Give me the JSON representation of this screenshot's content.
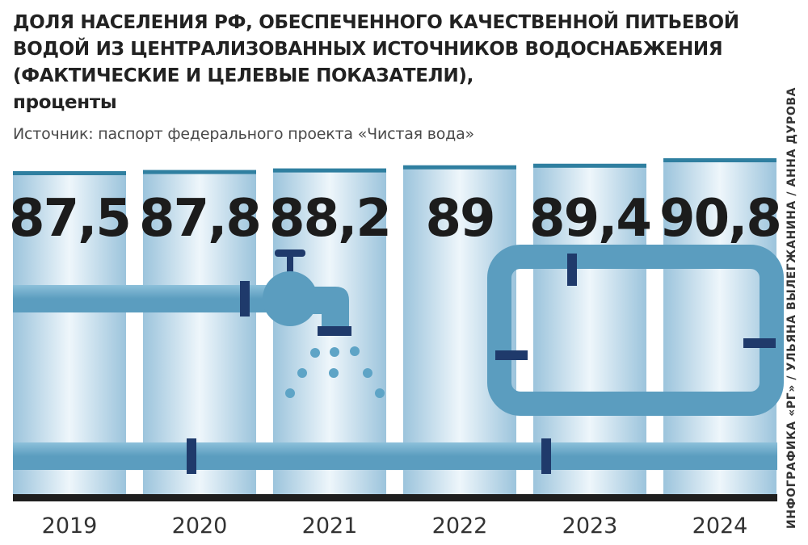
{
  "header": {
    "title": "ДОЛЯ НАСЕЛЕНИЯ РФ, ОБЕСПЕЧЕННОГО КАЧЕСТВЕННОЙ ПИТЬЕВОЙ ВОДОЙ ИЗ ЦЕНТРАЛИЗОВАННЫХ ИСТОЧНИКОВ ВОДОСНАБЖЕНИЯ (ФАКТИЧЕСКИЕ И ЦЕЛЕВЫЕ ПОКАЗАТЕЛИ),",
    "unit": "проценты",
    "source": "Источник: паспорт федерального проекта «Чистая вода»",
    "credit": "ИНФОГРАФИКА «РГ» / УЛЬЯНА ВЫЛЕГЖАНИНА / АННА ДУРОВА"
  },
  "colors": {
    "pillar_edge": "#9cc4dc",
    "pillar_center": "#eef6fb",
    "pillar_top": "#2f7fa0",
    "pipe": "#5b9dbf",
    "pipe_light": "#8cc0da",
    "joint": "#1f3a6b",
    "base": "#1e1e1e",
    "drop": "#5ea4c6"
  },
  "chart_data": {
    "type": "bar",
    "categories": [
      "2019",
      "2020",
      "2021",
      "2022",
      "2023",
      "2024"
    ],
    "value_labels": [
      "87,5",
      "87,8",
      "88,2",
      "89",
      "89,4",
      "90,8"
    ],
    "values": [
      87.5,
      87.8,
      88.2,
      89,
      89.4,
      90.8
    ],
    "ylim": [
      87.5,
      90.8
    ],
    "grid": false,
    "legend": "none"
  }
}
